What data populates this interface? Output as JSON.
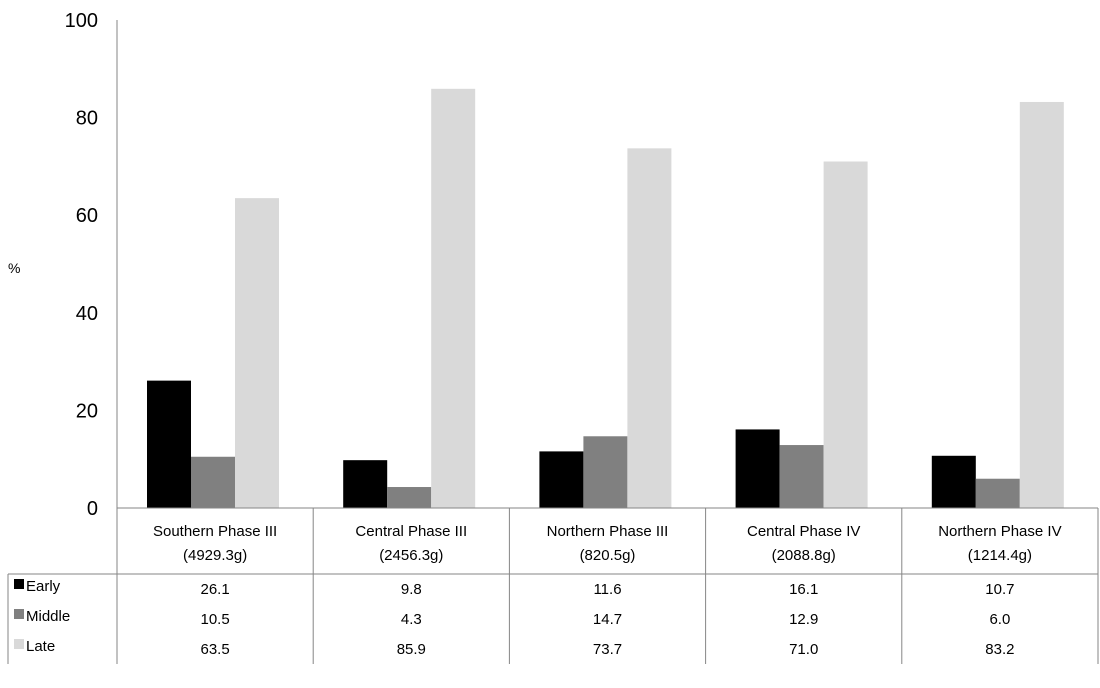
{
  "chart_data": {
    "type": "bar",
    "ylabel": "%",
    "ylim": [
      0,
      100
    ],
    "yticks": [
      "0",
      "20",
      "40",
      "60",
      "80",
      "100"
    ],
    "grid": false,
    "legend_placement": "data-table-left",
    "categories": [
      [
        "Southern Phase III",
        "(4929.3g)"
      ],
      [
        "Central Phase III",
        "(2456.3g)"
      ],
      [
        "Northern Phase III",
        "(820.5g)"
      ],
      [
        "Central Phase IV",
        "(2088.8g)"
      ],
      [
        "Northern Phase IV",
        "(1214.4g)"
      ]
    ],
    "series": [
      {
        "name": "Early",
        "color": "#000000",
        "values": [
          26.1,
          9.8,
          11.6,
          16.1,
          10.7
        ],
        "labels": [
          "26.1",
          "9.8",
          "11.6",
          "16.1",
          "10.7"
        ]
      },
      {
        "name": "Middle",
        "color": "#808080",
        "values": [
          10.5,
          4.3,
          14.7,
          12.9,
          6.0
        ],
        "labels": [
          "10.5",
          "4.3",
          "14.7",
          "12.9",
          "6.0"
        ]
      },
      {
        "name": "Late",
        "color": "#d9d9d9",
        "values": [
          63.5,
          85.9,
          73.7,
          71.0,
          83.2
        ],
        "labels": [
          "63.5",
          "85.9",
          "73.7",
          "71.0",
          "83.2"
        ]
      }
    ]
  }
}
